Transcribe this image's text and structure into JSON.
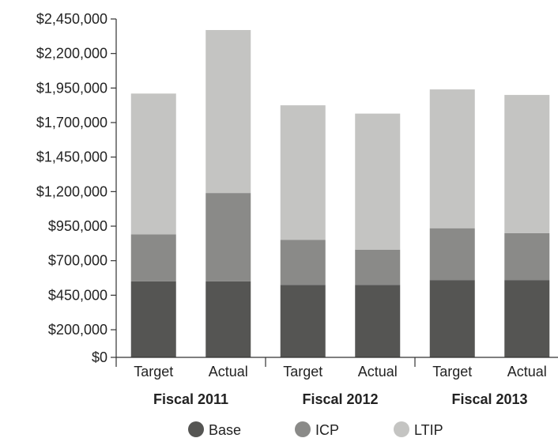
{
  "chart_data": {
    "type": "bar",
    "stacked": true,
    "groups": [
      {
        "label": "Fiscal 2011",
        "categories": [
          "Target",
          "Actual"
        ]
      },
      {
        "label": "Fiscal 2012",
        "categories": [
          "Target",
          "Actual"
        ]
      },
      {
        "label": "Fiscal 2013",
        "categories": [
          "Target",
          "Actual"
        ]
      }
    ],
    "categories": [
      "Target",
      "Actual",
      "Target",
      "Actual",
      "Target",
      "Actual"
    ],
    "series": [
      {
        "name": "Base",
        "color": "#555553",
        "values": [
          550000,
          550000,
          525000,
          525000,
          560000,
          560000
        ]
      },
      {
        "name": "ICP",
        "color": "#8a8a88",
        "values": [
          340000,
          640000,
          325000,
          255000,
          375000,
          340000
        ]
      },
      {
        "name": "LTIP",
        "color": "#c4c4c2",
        "values": [
          1020000,
          1180000,
          975000,
          985000,
          1005000,
          1000000
        ]
      }
    ],
    "yticks": [
      "$0",
      "$200,000",
      "$450,000",
      "$700,000",
      "$950,000",
      "$1,200,000",
      "$1,450,000",
      "$1,700,000",
      "$1,950,000",
      "$2,200,000",
      "$2,450,000"
    ],
    "ytick_values": [
      0,
      200000,
      450000,
      700000,
      950000,
      1200000,
      1450000,
      1700000,
      1950000,
      2200000,
      2450000
    ],
    "ylim": [
      0,
      2450000
    ],
    "grid": false,
    "legend_position": "bottom"
  }
}
